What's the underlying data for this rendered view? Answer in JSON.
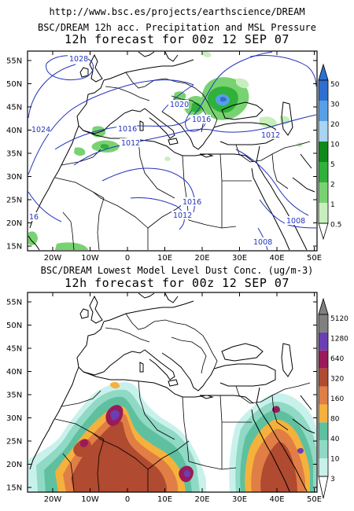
{
  "url": "http://www.bsc.es/projects/earthscience/DREAM",
  "panel1": {
    "title_line1": "BSC/DREAM 12h acc. Precipitation and MSL Pressure",
    "title_line2": "12h forecast for 00z 12 SEP 07",
    "colorbar_labels": [
      "50",
      "30",
      "20",
      "10",
      "5",
      "2",
      "1",
      "0.5"
    ],
    "colorbar_colors": [
      "#2f6fd0",
      "#57a0e8",
      "#a8d4f4",
      "#0f8a1a",
      "#2fb13a",
      "#79d271",
      "#c7efbd"
    ],
    "isobars": [
      {
        "label": "1028"
      },
      {
        "label": "1024"
      },
      {
        "label": "1020"
      },
      {
        "label": "1016"
      },
      {
        "label": "1016"
      },
      {
        "label": "1012"
      },
      {
        "label": "1012"
      },
      {
        "label": "1016"
      },
      {
        "label": "1012"
      },
      {
        "label": "1008"
      },
      {
        "label": "1008"
      },
      {
        "label": "16"
      }
    ]
  },
  "panel2": {
    "title_line1": "BSC/DREAM Lowest Model Level Dust Conc. (ug/m-3)",
    "title_line2": "12h forecast for 00z 12 SEP 07",
    "colorbar_labels": [
      "5120",
      "1280",
      "640",
      "320",
      "160",
      "80",
      "40",
      "10",
      "3"
    ],
    "colorbar_colors": [
      "#808080",
      "#6a3fb3",
      "#9b1a5a",
      "#b04a30",
      "#e07e45",
      "#f5b13c",
      "#5fc0a0",
      "#8fd9c5",
      "#c9f1ec"
    ]
  },
  "lat_labels": [
    "55N",
    "50N",
    "45N",
    "40N",
    "35N",
    "30N",
    "25N",
    "20N",
    "15N"
  ],
  "lon_labels": [
    "20W",
    "10W",
    "0",
    "10E",
    "20E",
    "30E",
    "40E",
    "50E"
  ],
  "colors": {
    "contour": "#2233bb",
    "coast": "#000000",
    "frame": "#000000"
  }
}
